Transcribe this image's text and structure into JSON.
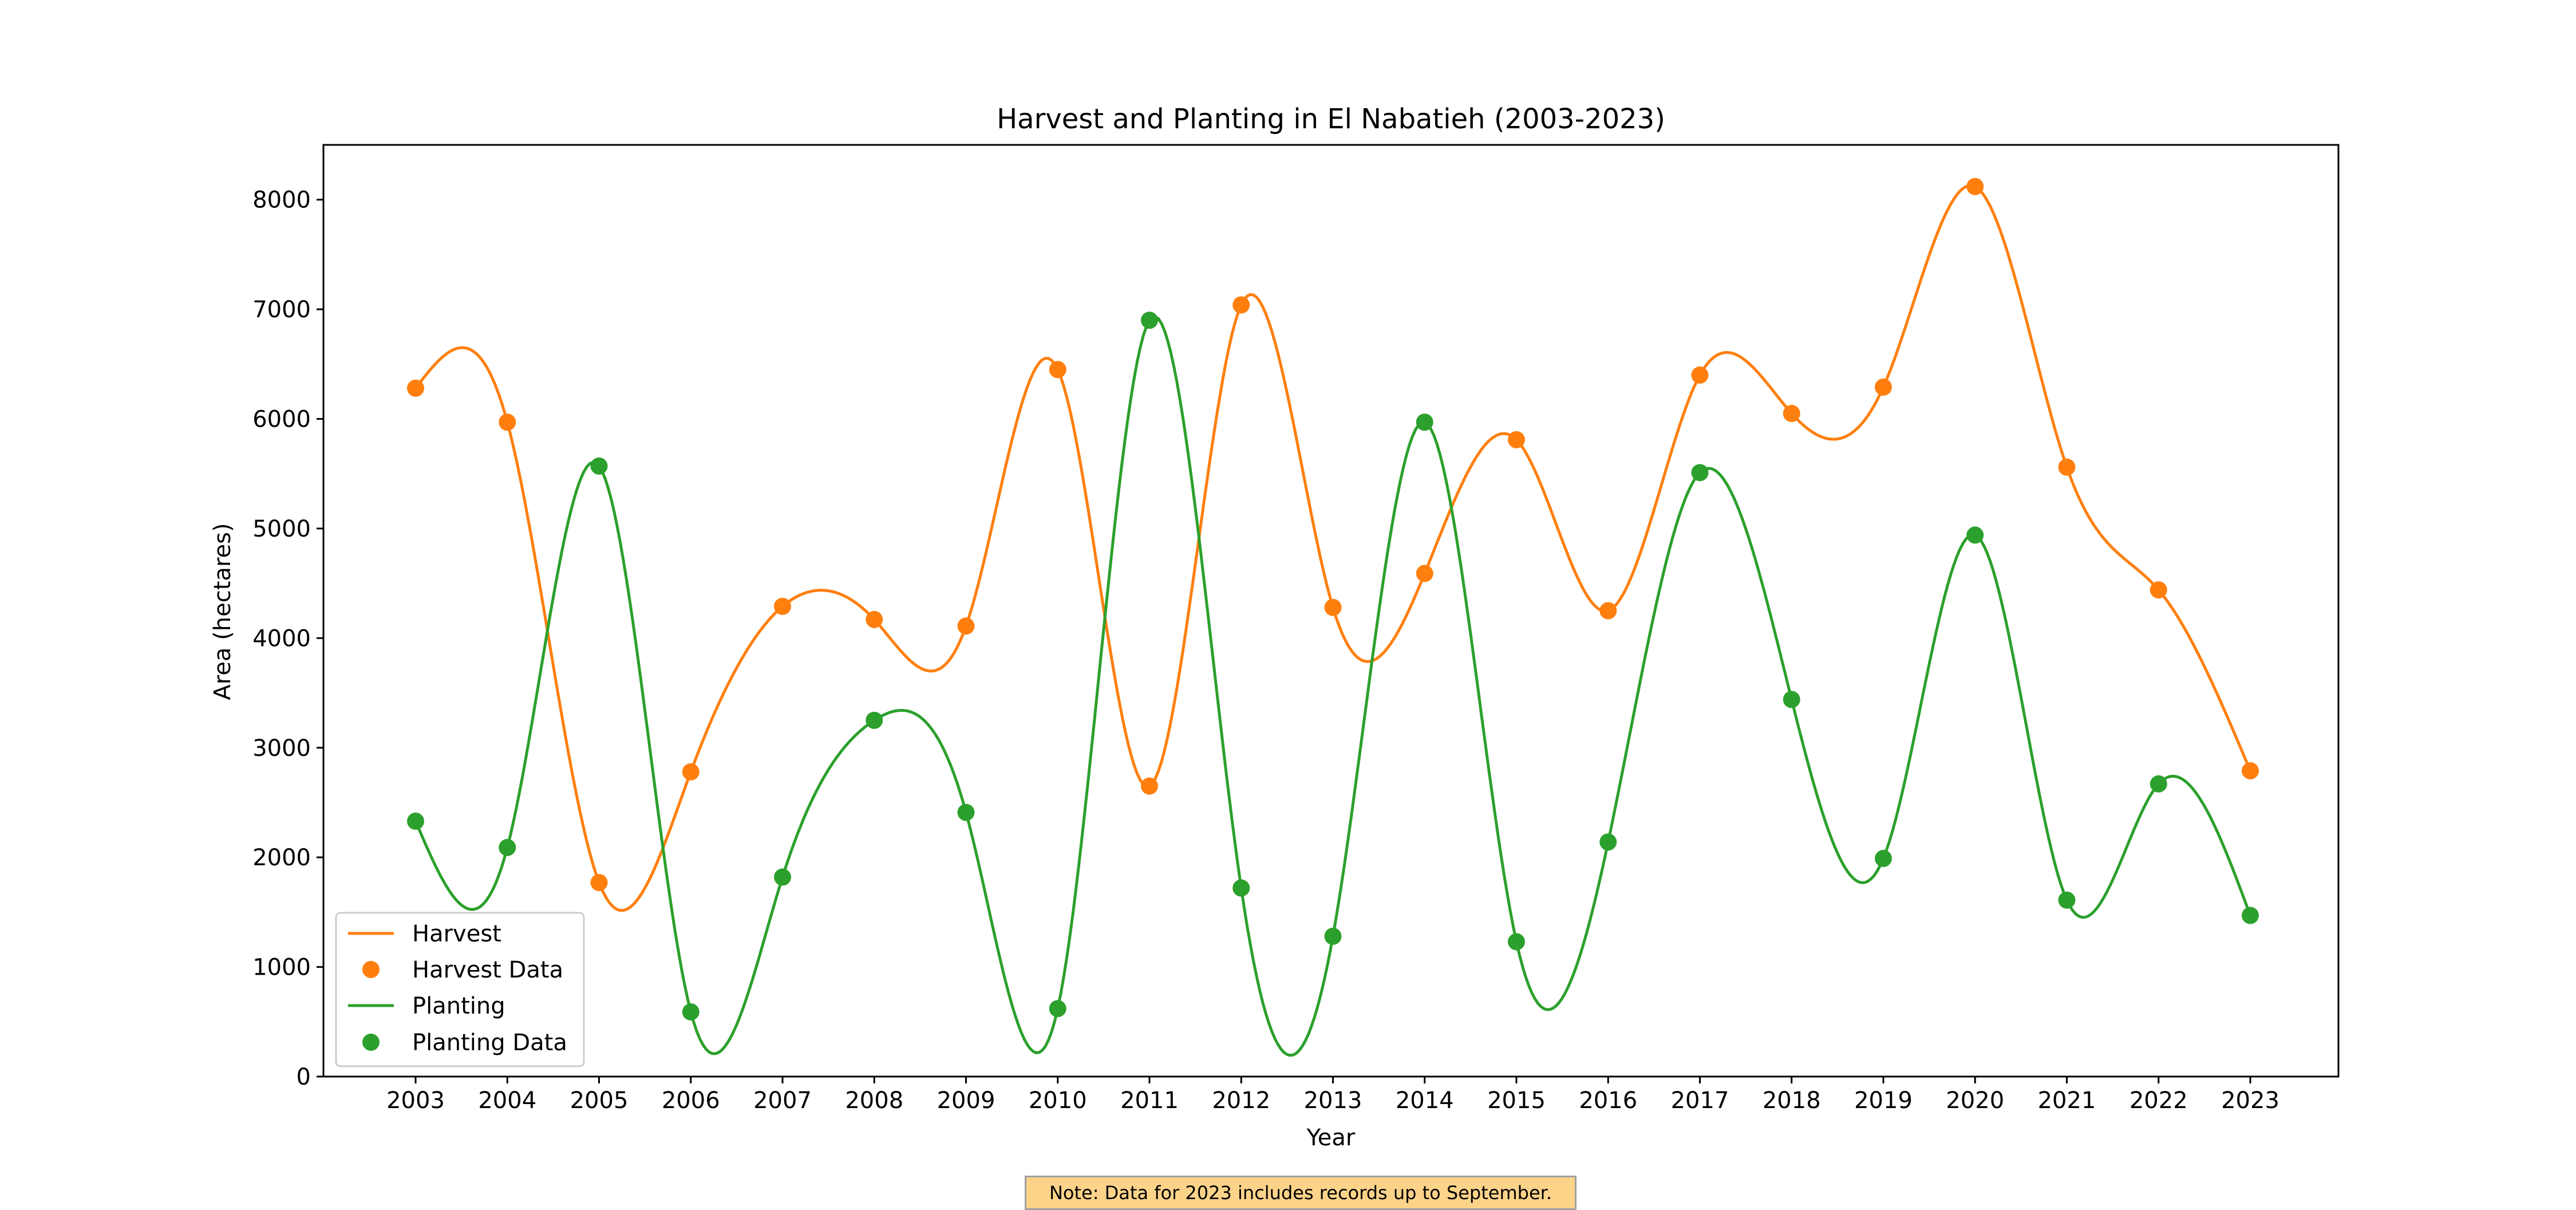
{
  "chart_data": {
    "type": "line",
    "title": "Harvest and Planting in El Nabatieh (2003-2023)",
    "xlabel": "Year",
    "ylabel": "Area (hectares)",
    "x": [
      2003,
      2004,
      2005,
      2006,
      2007,
      2008,
      2009,
      2010,
      2011,
      2012,
      2013,
      2014,
      2015,
      2016,
      2017,
      2018,
      2019,
      2020,
      2021,
      2022,
      2023
    ],
    "xticks": [
      "2003",
      "2004",
      "2005",
      "2006",
      "2007",
      "2008",
      "2009",
      "2010",
      "2011",
      "2012",
      "2013",
      "2014",
      "2015",
      "2016",
      "2017",
      "2018",
      "2019",
      "2020",
      "2021",
      "2022",
      "2023"
    ],
    "yticks": [
      "0",
      "1000",
      "2000",
      "3000",
      "4000",
      "5000",
      "6000",
      "7000",
      "8000"
    ],
    "ylim": [
      0,
      8500
    ],
    "grid": false,
    "legend_position": "lower-left",
    "series": [
      {
        "name": "Harvest",
        "marker_name": "Harvest Data",
        "color": "#ff7f0e",
        "values": [
          6280,
          5970,
          1770,
          2780,
          4290,
          4170,
          4110,
          6450,
          2650,
          7040,
          4280,
          4590,
          5810,
          4250,
          6400,
          6050,
          6290,
          8120,
          5560,
          4440,
          2790
        ]
      },
      {
        "name": "Planting",
        "marker_name": "Planting Data",
        "color": "#2ca02c",
        "values": [
          2330,
          2090,
          5570,
          590,
          1820,
          3250,
          2410,
          620,
          6900,
          1720,
          1280,
          5970,
          1230,
          2140,
          5510,
          3440,
          1990,
          4940,
          1610,
          2670,
          1470
        ]
      }
    ]
  },
  "note": "Note: Data for 2023 includes records up to September."
}
